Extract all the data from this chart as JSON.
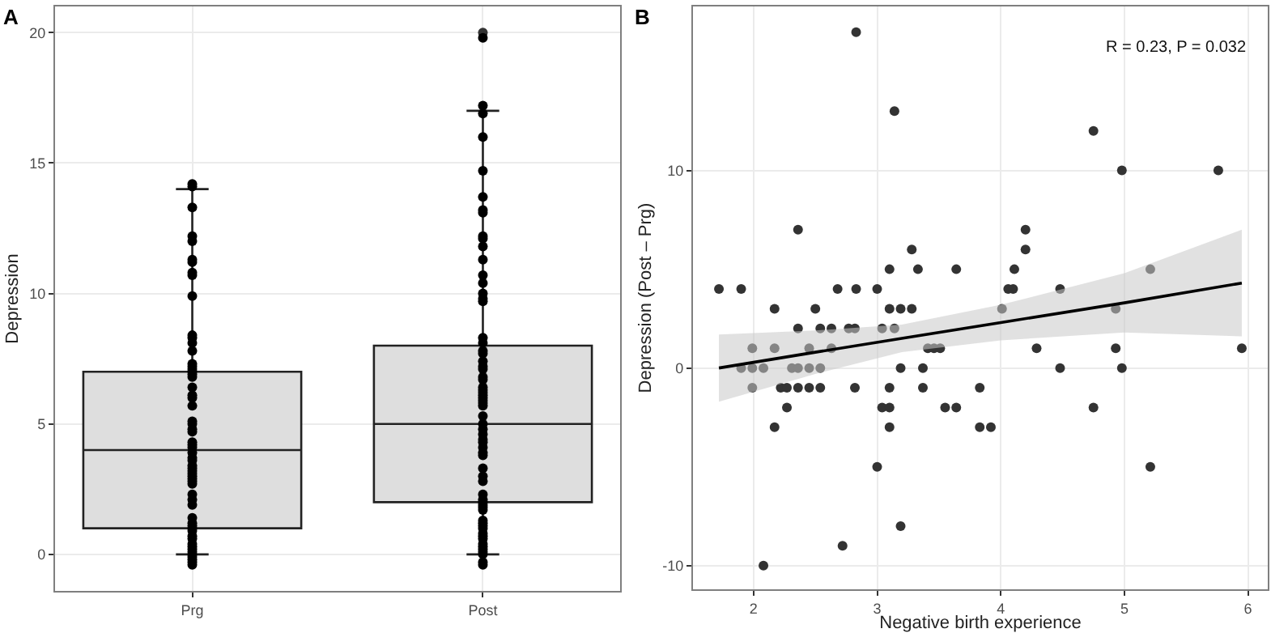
{
  "chart_data": [
    {
      "type": "box",
      "title": "A",
      "ylabel": "Depression",
      "categories": [
        "Prg",
        "Post"
      ],
      "color": "#dedede",
      "ylim": [
        -1.4,
        21.0
      ],
      "yticks": [
        0,
        5,
        10,
        15,
        20
      ],
      "grid": true,
      "boxes": [
        {
          "low": 0,
          "q1": 1,
          "median": 4,
          "q3": 7,
          "high": 14
        },
        {
          "low": 0,
          "q1": 2,
          "median": 5,
          "q3": 8,
          "high": 17,
          "outliers": [
            20
          ]
        }
      ],
      "series": [
        {
          "type": "scatter",
          "color": "#000000",
          "marker": "circle",
          "x": [
            "Prg",
            "Prg",
            "Prg",
            "Prg",
            "Prg",
            "Prg",
            "Prg",
            "Prg",
            "Prg",
            "Prg",
            "Prg",
            "Prg",
            "Prg",
            "Prg",
            "Prg",
            "Prg",
            "Prg",
            "Prg",
            "Prg",
            "Prg",
            "Prg",
            "Prg",
            "Prg",
            "Prg",
            "Prg",
            "Prg",
            "Prg",
            "Prg",
            "Prg",
            "Prg",
            "Prg",
            "Prg",
            "Prg",
            "Prg",
            "Prg",
            "Prg",
            "Prg",
            "Prg",
            "Prg",
            "Prg",
            "Prg",
            "Prg",
            "Prg",
            "Prg",
            "Prg",
            "Prg",
            "Prg",
            "Prg",
            "Prg",
            "Prg",
            "Prg",
            "Prg",
            "Prg",
            "Prg",
            "Prg",
            "Prg",
            "Prg",
            "Prg",
            "Prg",
            "Prg",
            "Prg"
          ],
          "values": [
            14.1,
            14.2,
            13.3,
            12.2,
            12.0,
            11.2,
            10.7,
            11.3,
            10.8,
            9.9,
            8.1,
            7.8,
            7.2,
            7.1,
            6.8,
            7.0,
            6.9,
            6.4,
            6.1,
            6.0,
            8.3,
            8.4,
            7.3,
            5.7,
            4.8,
            4.7,
            5.1,
            5.0,
            4.3,
            4.1,
            3.9,
            3.7,
            3.6,
            3.4,
            3.3,
            3.2,
            4.2,
            3.0,
            3.1,
            2.9,
            2.8,
            2.7,
            2.3,
            2.1,
            1.9,
            1.4,
            1.2,
            1.1,
            1.0,
            0.9,
            0.7,
            0.6,
            0.4,
            0.2,
            0.3,
            0.1,
            0.0,
            -0.1,
            -0.2,
            -0.3,
            -0.4
          ]
        },
        {
          "type": "scatter",
          "color": "#000000",
          "marker": "circle",
          "x": [
            "Post",
            "Post",
            "Post",
            "Post",
            "Post",
            "Post",
            "Post",
            "Post",
            "Post",
            "Post",
            "Post",
            "Post",
            "Post",
            "Post",
            "Post",
            "Post",
            "Post",
            "Post",
            "Post",
            "Post",
            "Post",
            "Post",
            "Post",
            "Post",
            "Post",
            "Post",
            "Post",
            "Post",
            "Post",
            "Post",
            "Post",
            "Post",
            "Post",
            "Post",
            "Post",
            "Post",
            "Post",
            "Post",
            "Post",
            "Post",
            "Post",
            "Post",
            "Post",
            "Post",
            "Post",
            "Post",
            "Post",
            "Post",
            "Post",
            "Post",
            "Post",
            "Post",
            "Post",
            "Post",
            "Post",
            "Post",
            "Post",
            "Post",
            "Post",
            "Post",
            "Post",
            "Post",
            "Post",
            "Post",
            "Post",
            "Post"
          ],
          "values": [
            19.8,
            17.2,
            16.9,
            16.0,
            14.7,
            13.7,
            13.2,
            13.1,
            12.2,
            12.1,
            11.8,
            11.3,
            10.7,
            10.4,
            10.0,
            9.8,
            9.7,
            8.3,
            8.1,
            7.8,
            7.7,
            7.4,
            7.2,
            7.1,
            6.8,
            6.7,
            6.4,
            6.3,
            6.2,
            6.1,
            6.0,
            5.9,
            5.8,
            5.7,
            5.3,
            5.0,
            4.8,
            4.6,
            4.4,
            4.3,
            4.1,
            3.8,
            3.9,
            3.3,
            3.0,
            2.8,
            2.3,
            2.1,
            2.0,
            1.9,
            1.8,
            1.7,
            1.3,
            1.2,
            1.1,
            1.0,
            0.8,
            0.7,
            0.6,
            0.4,
            0.3,
            0.2,
            0.1,
            0.0,
            -0.3,
            -0.4
          ]
        }
      ]
    },
    {
      "type": "scatter",
      "title": "B",
      "xlabel": "Negative birth experience",
      "ylabel": "Depression (Post – Prg)",
      "xlim": [
        1.51,
        6.16
      ],
      "xticks": [
        2,
        3,
        4,
        5,
        6
      ],
      "ylim": [
        -11.2,
        18.3
      ],
      "yticks": [
        -10,
        0,
        10
      ],
      "grid": true,
      "annotations": [
        "R = 0.23, P = 0.032"
      ],
      "series": [
        {
          "type": "scatter",
          "color": "#333333",
          "marker": "circle",
          "x": [
            2.83,
            3.14,
            4.75,
            4.98,
            5.76,
            2.36,
            4.2,
            3.28,
            4.2,
            3.1,
            3.33,
            3.64,
            4.11,
            5.21,
            1.72,
            1.9,
            2.68,
            2.83,
            3.0,
            4.06,
            4.1,
            4.48,
            2.17,
            2.5,
            3.1,
            3.19,
            3.28,
            4.01,
            4.93,
            2.36,
            2.54,
            2.63,
            2.77,
            2.82,
            3.04,
            3.14,
            1.99,
            2.17,
            2.45,
            2.63,
            3.41,
            3.46,
            3.51,
            4.29,
            4.93,
            5.95,
            1.9,
            1.99,
            2.08,
            2.31,
            2.36,
            2.45,
            2.54,
            3.19,
            3.37,
            4.48,
            4.98,
            1.99,
            2.22,
            2.27,
            2.36,
            2.45,
            2.54,
            2.82,
            3.1,
            3.37,
            3.83,
            2.27,
            3.04,
            3.1,
            3.55,
            3.64,
            4.75,
            2.17,
            3.1,
            3.83,
            3.92,
            3.0,
            5.21,
            3.19,
            2.72,
            2.08
          ],
          "values": [
            17,
            13,
            12,
            10,
            10,
            7,
            7,
            6,
            6,
            5,
            5,
            5,
            5,
            5,
            4,
            4,
            4,
            4,
            4,
            4,
            4,
            4,
            3,
            3,
            3,
            3,
            3,
            3,
            3,
            2,
            2,
            2,
            2,
            2,
            2,
            2,
            1,
            1,
            1,
            1,
            1,
            1,
            1,
            1,
            1,
            1,
            0,
            0,
            0,
            0,
            0,
            0,
            0,
            0,
            0,
            0,
            0,
            -1,
            -1,
            -1,
            -1,
            -1,
            -1,
            -1,
            -1,
            -1,
            -1,
            -2,
            -2,
            -2,
            -2,
            -2,
            -2,
            -3,
            -3,
            -3,
            -3,
            -5,
            -5,
            -8,
            -9,
            -10
          ]
        },
        {
          "type": "line",
          "color": "#000000",
          "marker": "none",
          "line_style": "solid",
          "x": [
            1.72,
            2.5,
            3.2,
            4.0,
            5.0,
            5.95
          ],
          "values": [
            0.0,
            0.8,
            1.5,
            2.3,
            3.3,
            4.3
          ],
          "lower": [
            -1.7,
            -0.3,
            0.8,
            1.4,
            1.8,
            1.6
          ],
          "upper": [
            1.7,
            1.9,
            2.2,
            3.2,
            4.8,
            7.0
          ]
        }
      ]
    }
  ]
}
